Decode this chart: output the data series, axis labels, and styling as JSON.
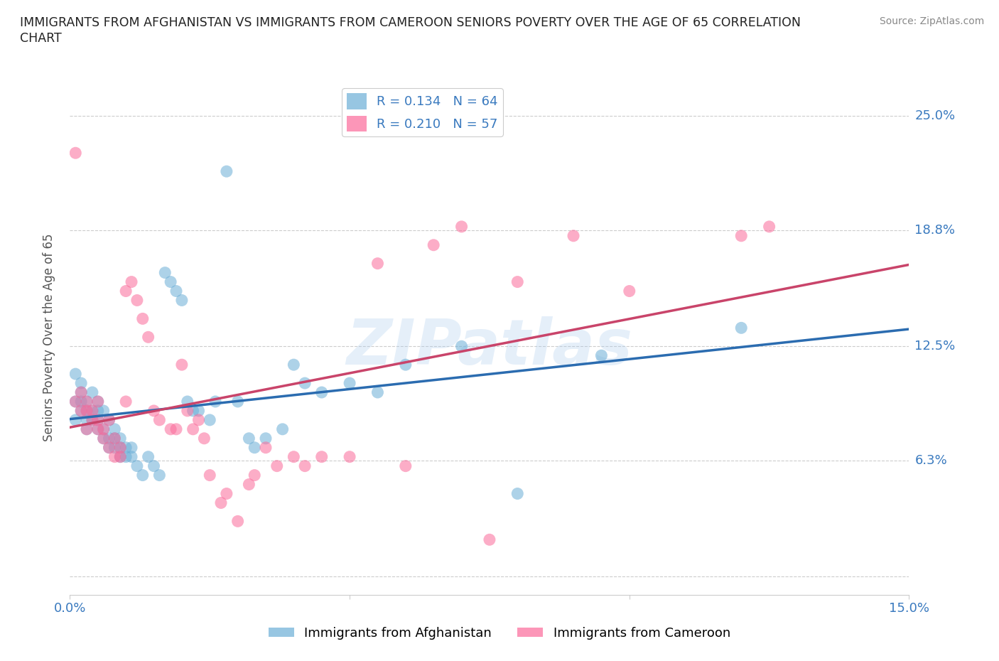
{
  "title_line1": "IMMIGRANTS FROM AFGHANISTAN VS IMMIGRANTS FROM CAMEROON SENIORS POVERTY OVER THE AGE OF 65 CORRELATION",
  "title_line2": "CHART",
  "source": "Source: ZipAtlas.com",
  "ylabel": "Seniors Poverty Over the Age of 65",
  "xlim": [
    0.0,
    0.15
  ],
  "ylim": [
    -0.01,
    0.27
  ],
  "color_afg": "#6baed6",
  "color_cam": "#fb6a9a",
  "line_color_afg": "#2b6cb0",
  "line_color_cam": "#c9446a",
  "R_afg": 0.134,
  "N_afg": 64,
  "R_cam": 0.21,
  "N_cam": 57,
  "legend_label_afg": "Immigrants from Afghanistan",
  "legend_label_cam": "Immigrants from Cameroon",
  "watermark": "ZIPatlas",
  "afghanistan_x": [
    0.001,
    0.001,
    0.001,
    0.002,
    0.002,
    0.002,
    0.002,
    0.003,
    0.003,
    0.003,
    0.003,
    0.004,
    0.004,
    0.004,
    0.005,
    0.005,
    0.005,
    0.005,
    0.006,
    0.006,
    0.006,
    0.007,
    0.007,
    0.007,
    0.008,
    0.008,
    0.008,
    0.009,
    0.009,
    0.009,
    0.01,
    0.01,
    0.011,
    0.011,
    0.012,
    0.013,
    0.014,
    0.015,
    0.016,
    0.017,
    0.018,
    0.019,
    0.02,
    0.021,
    0.022,
    0.023,
    0.025,
    0.026,
    0.028,
    0.03,
    0.032,
    0.033,
    0.035,
    0.038,
    0.04,
    0.042,
    0.045,
    0.05,
    0.055,
    0.06,
    0.07,
    0.08,
    0.095,
    0.12
  ],
  "afghanistan_y": [
    0.095,
    0.11,
    0.085,
    0.09,
    0.095,
    0.1,
    0.105,
    0.085,
    0.09,
    0.095,
    0.08,
    0.085,
    0.09,
    0.1,
    0.08,
    0.085,
    0.09,
    0.095,
    0.075,
    0.08,
    0.09,
    0.07,
    0.075,
    0.085,
    0.07,
    0.075,
    0.08,
    0.065,
    0.07,
    0.075,
    0.065,
    0.07,
    0.065,
    0.07,
    0.06,
    0.055,
    0.065,
    0.06,
    0.055,
    0.165,
    0.16,
    0.155,
    0.15,
    0.095,
    0.09,
    0.09,
    0.085,
    0.095,
    0.22,
    0.095,
    0.075,
    0.07,
    0.075,
    0.08,
    0.115,
    0.105,
    0.1,
    0.105,
    0.1,
    0.115,
    0.125,
    0.045,
    0.12,
    0.135
  ],
  "cameroon_x": [
    0.001,
    0.001,
    0.002,
    0.002,
    0.003,
    0.003,
    0.003,
    0.004,
    0.004,
    0.005,
    0.005,
    0.005,
    0.006,
    0.006,
    0.007,
    0.007,
    0.008,
    0.008,
    0.009,
    0.009,
    0.01,
    0.01,
    0.011,
    0.012,
    0.013,
    0.014,
    0.015,
    0.016,
    0.018,
    0.019,
    0.02,
    0.021,
    0.022,
    0.023,
    0.024,
    0.025,
    0.027,
    0.028,
    0.03,
    0.032,
    0.033,
    0.035,
    0.037,
    0.04,
    0.042,
    0.045,
    0.05,
    0.055,
    0.06,
    0.065,
    0.07,
    0.075,
    0.08,
    0.09,
    0.1,
    0.12,
    0.125
  ],
  "cameroon_y": [
    0.23,
    0.095,
    0.09,
    0.1,
    0.08,
    0.09,
    0.095,
    0.085,
    0.09,
    0.08,
    0.085,
    0.095,
    0.075,
    0.08,
    0.07,
    0.085,
    0.065,
    0.075,
    0.065,
    0.07,
    0.095,
    0.155,
    0.16,
    0.15,
    0.14,
    0.13,
    0.09,
    0.085,
    0.08,
    0.08,
    0.115,
    0.09,
    0.08,
    0.085,
    0.075,
    0.055,
    0.04,
    0.045,
    0.03,
    0.05,
    0.055,
    0.07,
    0.06,
    0.065,
    0.06,
    0.065,
    0.065,
    0.17,
    0.06,
    0.18,
    0.19,
    0.02,
    0.16,
    0.185,
    0.155,
    0.185,
    0.19
  ]
}
